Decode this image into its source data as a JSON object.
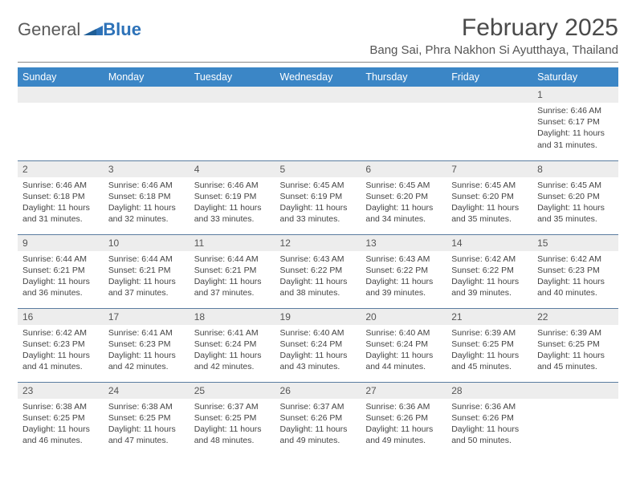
{
  "brand": {
    "part1": "General",
    "part2": "Blue"
  },
  "title": "February 2025",
  "location": "Bang Sai, Phra Nakhon Si Ayutthaya, Thailand",
  "colors": {
    "header_bg": "#3b86c6",
    "header_text": "#ffffff",
    "daynum_bg": "#ededed",
    "row_border": "#5a7ca0",
    "brand_gray": "#5a5a5a",
    "brand_blue": "#2d72b8"
  },
  "weekdays": [
    "Sunday",
    "Monday",
    "Tuesday",
    "Wednesday",
    "Thursday",
    "Friday",
    "Saturday"
  ],
  "weeks": [
    [
      null,
      null,
      null,
      null,
      null,
      null,
      {
        "n": "1",
        "sr": "6:46 AM",
        "ss": "6:17 PM",
        "dl": "11 hours and 31 minutes."
      }
    ],
    [
      {
        "n": "2",
        "sr": "6:46 AM",
        "ss": "6:18 PM",
        "dl": "11 hours and 31 minutes."
      },
      {
        "n": "3",
        "sr": "6:46 AM",
        "ss": "6:18 PM",
        "dl": "11 hours and 32 minutes."
      },
      {
        "n": "4",
        "sr": "6:46 AM",
        "ss": "6:19 PM",
        "dl": "11 hours and 33 minutes."
      },
      {
        "n": "5",
        "sr": "6:45 AM",
        "ss": "6:19 PM",
        "dl": "11 hours and 33 minutes."
      },
      {
        "n": "6",
        "sr": "6:45 AM",
        "ss": "6:20 PM",
        "dl": "11 hours and 34 minutes."
      },
      {
        "n": "7",
        "sr": "6:45 AM",
        "ss": "6:20 PM",
        "dl": "11 hours and 35 minutes."
      },
      {
        "n": "8",
        "sr": "6:45 AM",
        "ss": "6:20 PM",
        "dl": "11 hours and 35 minutes."
      }
    ],
    [
      {
        "n": "9",
        "sr": "6:44 AM",
        "ss": "6:21 PM",
        "dl": "11 hours and 36 minutes."
      },
      {
        "n": "10",
        "sr": "6:44 AM",
        "ss": "6:21 PM",
        "dl": "11 hours and 37 minutes."
      },
      {
        "n": "11",
        "sr": "6:44 AM",
        "ss": "6:21 PM",
        "dl": "11 hours and 37 minutes."
      },
      {
        "n": "12",
        "sr": "6:43 AM",
        "ss": "6:22 PM",
        "dl": "11 hours and 38 minutes."
      },
      {
        "n": "13",
        "sr": "6:43 AM",
        "ss": "6:22 PM",
        "dl": "11 hours and 39 minutes."
      },
      {
        "n": "14",
        "sr": "6:42 AM",
        "ss": "6:22 PM",
        "dl": "11 hours and 39 minutes."
      },
      {
        "n": "15",
        "sr": "6:42 AM",
        "ss": "6:23 PM",
        "dl": "11 hours and 40 minutes."
      }
    ],
    [
      {
        "n": "16",
        "sr": "6:42 AM",
        "ss": "6:23 PM",
        "dl": "11 hours and 41 minutes."
      },
      {
        "n": "17",
        "sr": "6:41 AM",
        "ss": "6:23 PM",
        "dl": "11 hours and 42 minutes."
      },
      {
        "n": "18",
        "sr": "6:41 AM",
        "ss": "6:24 PM",
        "dl": "11 hours and 42 minutes."
      },
      {
        "n": "19",
        "sr": "6:40 AM",
        "ss": "6:24 PM",
        "dl": "11 hours and 43 minutes."
      },
      {
        "n": "20",
        "sr": "6:40 AM",
        "ss": "6:24 PM",
        "dl": "11 hours and 44 minutes."
      },
      {
        "n": "21",
        "sr": "6:39 AM",
        "ss": "6:25 PM",
        "dl": "11 hours and 45 minutes."
      },
      {
        "n": "22",
        "sr": "6:39 AM",
        "ss": "6:25 PM",
        "dl": "11 hours and 45 minutes."
      }
    ],
    [
      {
        "n": "23",
        "sr": "6:38 AM",
        "ss": "6:25 PM",
        "dl": "11 hours and 46 minutes."
      },
      {
        "n": "24",
        "sr": "6:38 AM",
        "ss": "6:25 PM",
        "dl": "11 hours and 47 minutes."
      },
      {
        "n": "25",
        "sr": "6:37 AM",
        "ss": "6:25 PM",
        "dl": "11 hours and 48 minutes."
      },
      {
        "n": "26",
        "sr": "6:37 AM",
        "ss": "6:26 PM",
        "dl": "11 hours and 49 minutes."
      },
      {
        "n": "27",
        "sr": "6:36 AM",
        "ss": "6:26 PM",
        "dl": "11 hours and 49 minutes."
      },
      {
        "n": "28",
        "sr": "6:36 AM",
        "ss": "6:26 PM",
        "dl": "11 hours and 50 minutes."
      },
      null
    ]
  ],
  "labels": {
    "sunrise": "Sunrise:",
    "sunset": "Sunset:",
    "daylight": "Daylight:"
  }
}
